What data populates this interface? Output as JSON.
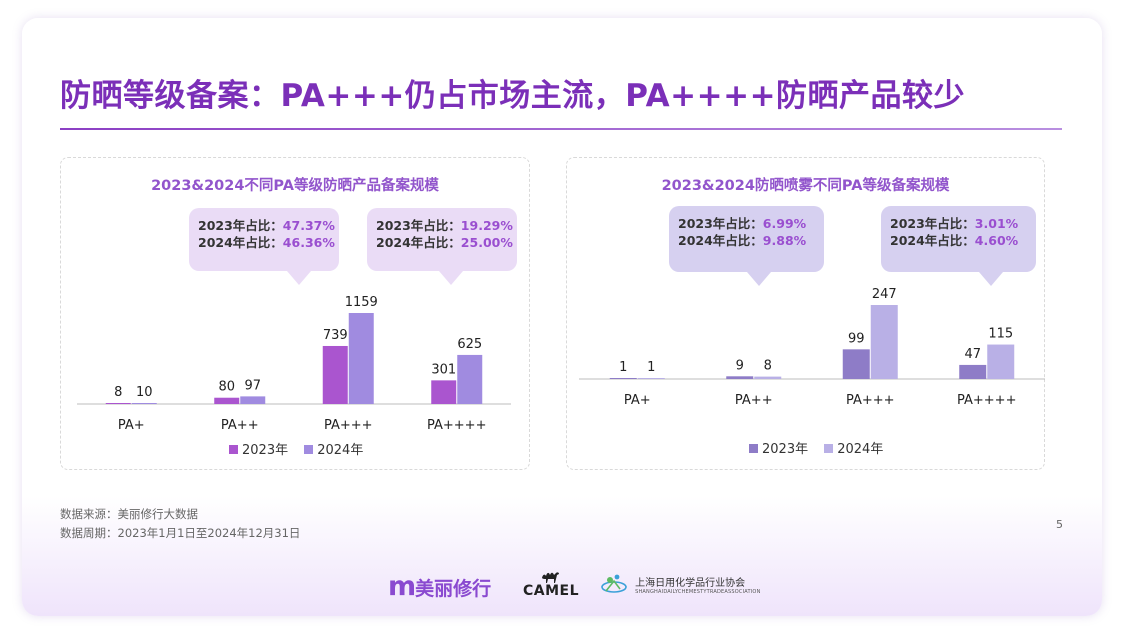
{
  "title": "防晒等级备案：PA+++仍占市场主流，PA++++防晒产品较少",
  "colors": {
    "s2023_left": "#aa55cf",
    "s2024_left": "#a08be0",
    "s2023_right": "#8e7cc7",
    "s2024_right": "#b9b0e6",
    "bubble_left": "#eadcf6",
    "bubble_right": "#d6d0f0"
  },
  "legend": {
    "y2023": "2023年",
    "y2024": "2024年"
  },
  "left": {
    "bubble1": {
      "line1_label": "2023年占比：",
      "line1_value": "47.37%",
      "line2_label": "2024年占比：",
      "line2_value": "46.36%"
    },
    "bubble2": {
      "line1_label": "2023年占比：",
      "line1_value": "19.29%",
      "line2_label": "2024年占比：",
      "line2_value": "25.00%"
    }
  },
  "right": {
    "bubble1": {
      "line1_label": "2023年占比：",
      "line1_value": "6.99%",
      "line2_label": "2024年占比：",
      "line2_value": "9.88%"
    },
    "bubble2": {
      "line1_label": "2023年占比：",
      "line1_value": "3.01%",
      "line2_label": "2024年占比：",
      "line2_value": "4.60%"
    }
  },
  "chart_data": [
    {
      "type": "bar",
      "title": "2023&2024不同PA等级防晒产品备案规模",
      "categories": [
        "PA+",
        "PA++",
        "PA+++",
        "PA++++"
      ],
      "series": [
        {
          "name": "2023年",
          "values": [
            8,
            80,
            739,
            301
          ]
        },
        {
          "name": "2024年",
          "values": [
            10,
            97,
            1159,
            625
          ]
        }
      ],
      "xlabel": "",
      "ylabel": "",
      "ylim": [
        0,
        1159
      ],
      "grid": false,
      "legend": "bottom-center"
    },
    {
      "type": "bar",
      "title": "2023&2024防晒喷雾不同PA等级备案规模",
      "categories": [
        "PA+",
        "PA++",
        "PA+++",
        "PA++++"
      ],
      "series": [
        {
          "name": "2023年",
          "values": [
            1,
            9,
            99,
            47
          ]
        },
        {
          "name": "2024年",
          "values": [
            1,
            8,
            247,
            115
          ]
        }
      ],
      "xlabel": "",
      "ylabel": "",
      "ylim": [
        0,
        247
      ],
      "grid": false,
      "legend": "bottom-center"
    }
  ],
  "footer": {
    "source": "数据来源：美丽修行大数据",
    "period": "数据周期：2023年1月1日至2024年12月31日",
    "page": "5"
  },
  "logos": {
    "brand_mark": "m",
    "brand_name": "美丽修行",
    "camel": "CAMEL",
    "assoc_cn": "上海日用化学品行业协会",
    "assoc_en": "SHANGHAIDAILYCHEMESTYTRADEASSOCIATION"
  }
}
